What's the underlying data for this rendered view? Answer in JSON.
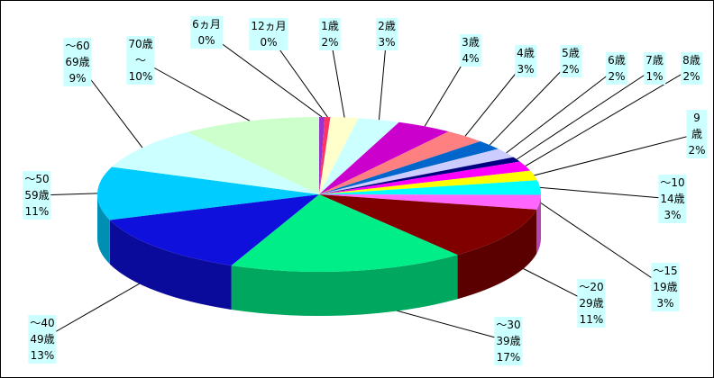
{
  "chart_data": {
    "type": "pie",
    "categories": [
      "6ヵ月",
      "12ヵ月",
      "1歳",
      "2歳",
      "3歳",
      "4歳",
      "5歳",
      "6歳",
      "7歳",
      "8歳",
      "9歳",
      "～10\n14歳",
      "～15\n19歳",
      "～20\n29歳",
      "～30\n39歳",
      "～40\n49歳",
      "～50\n59歳",
      "～60\n69歳",
      "70歳\n～"
    ],
    "values": [
      0.4,
      0.4,
      2,
      3,
      4,
      3,
      2,
      2,
      1,
      2,
      2,
      3,
      3,
      11,
      17,
      13,
      11,
      9,
      10
    ],
    "value_labels": [
      "0%",
      "0%",
      "2%",
      "3%",
      "4%",
      "3%",
      "2%",
      "2%",
      "1%",
      "2%",
      "2%",
      "3%",
      "3%",
      "11%",
      "17%",
      "13%",
      "11%",
      "9%",
      "10%"
    ],
    "colors": [
      "#9933cc",
      "#ff3366",
      "#ffffcc",
      "#ccffff",
      "#cc00cc",
      "#ff8080",
      "#0066cc",
      "#ccccff",
      "#000080",
      "#ff00ff",
      "#ffff00",
      "#00ffff",
      "#ff66ff",
      "#800000",
      "#00ee88",
      "#1010dd",
      "#00ccff",
      "#ccffff",
      "#ccffcc"
    ]
  }
}
